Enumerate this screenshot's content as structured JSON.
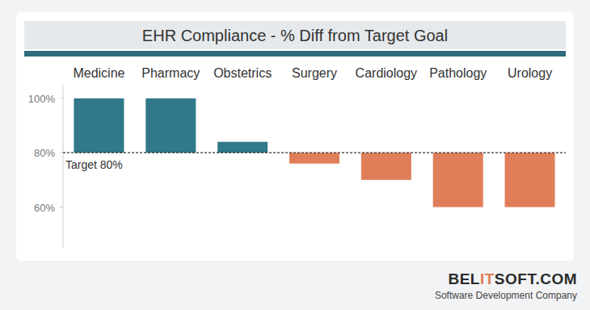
{
  "chart_data": {
    "type": "bar",
    "title": "EHR Compliance - % Diff from Target Goal",
    "categories": [
      "Medicine",
      "Pharmacy",
      "Obstetrics",
      "Surgery",
      "Cardiology",
      "Pathology",
      "Urology"
    ],
    "values": [
      100,
      100,
      84,
      76,
      70,
      60,
      60
    ],
    "colors": [
      "#31788a",
      "#31788a",
      "#31788a",
      "#e07e5a",
      "#e07e5a",
      "#e07e5a",
      "#e07e5a"
    ],
    "target": 80,
    "target_label": "Target 80%",
    "ylim": [
      45,
      105
    ],
    "yticks": [
      {
        "value": 60,
        "label": "60%"
      },
      {
        "value": 80,
        "label": "80%"
      },
      {
        "value": 100,
        "label": "100%"
      }
    ],
    "grid": false,
    "footer": {
      "logo": "BELITSOFT.COM",
      "tagline": "Software Development Company"
    }
  }
}
